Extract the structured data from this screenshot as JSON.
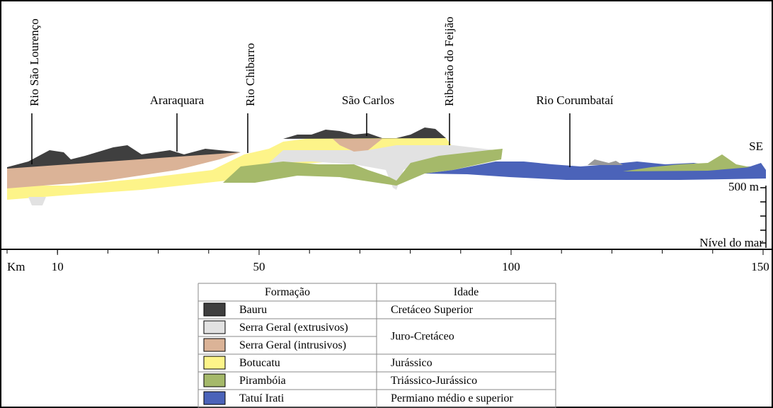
{
  "places": {
    "vertical": [
      "Rio São Lourenço",
      "Rio Chibarro",
      "Ribeirão do Feijão"
    ],
    "horizontal": [
      "Araraquara",
      "São Carlos",
      "Rio Corumbataí"
    ]
  },
  "side_labels": {
    "direction": "SE",
    "elevation": "500 m",
    "sea_level": "Nível do mar"
  },
  "axis": {
    "unit": "Km",
    "ticks": [
      10,
      50,
      100,
      150
    ]
  },
  "legend": {
    "headers": [
      "Formação",
      "Idade"
    ],
    "rows": [
      {
        "formation": "Bauru",
        "color": "#3f3f3f"
      },
      {
        "formation": "Serra Geral (extrusivos)",
        "color": "#e2e2e2"
      },
      {
        "formation": "Serra Geral (intrusivos)",
        "color": "#dbb397"
      },
      {
        "formation": "Botucatu",
        "color": "#fdf489"
      },
      {
        "formation": "Pirambóia",
        "color": "#a5b96a"
      },
      {
        "formation": "Tatuí Irati",
        "color": "#4b63b9"
      }
    ],
    "ages": [
      "Cretáceo Superior",
      "Juro-Cretáceo",
      "Jurássico",
      "Triássico-Jurássico",
      "Permiano médio e superior"
    ]
  }
}
